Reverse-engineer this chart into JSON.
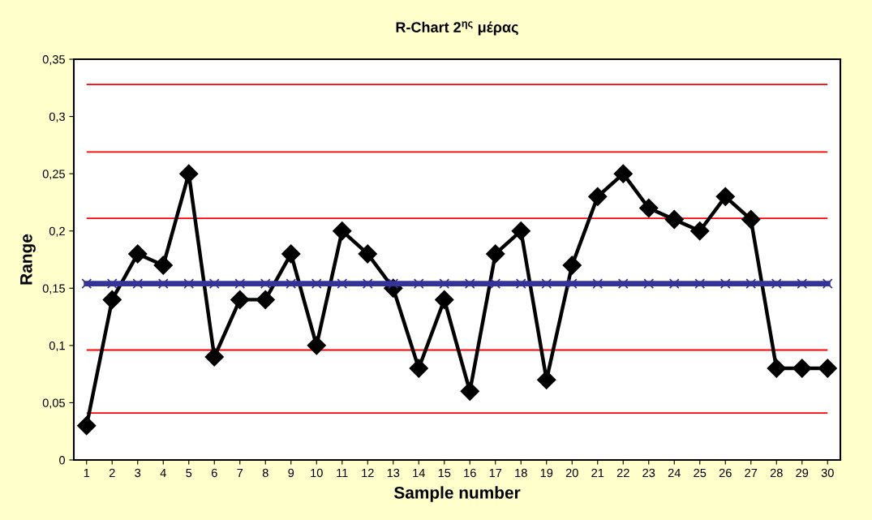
{
  "chart_data": {
    "type": "line",
    "title": "R-Chart 2$^{ης}$ μέρας",
    "xlabel": "Sample number",
    "ylabel": "Range",
    "categories": [
      "1",
      "2",
      "3",
      "4",
      "5",
      "6",
      "7",
      "8",
      "9",
      "10",
      "11",
      "12",
      "13",
      "14",
      "15",
      "16",
      "17",
      "18",
      "19",
      "20",
      "21",
      "22",
      "23",
      "24",
      "25",
      "26",
      "27",
      "28",
      "29",
      "30"
    ],
    "series": [
      {
        "color": "#333399",
        "marker": "cross",
        "values": [
          0.154,
          0.154,
          0.154,
          0.154,
          0.154,
          0.154,
          0.154,
          0.154,
          0.154,
          0.154,
          0.154,
          0.154,
          0.154,
          0.154,
          0.154,
          0.154,
          0.154,
          0.154,
          0.154,
          0.154,
          0.154,
          0.154,
          0.154,
          0.154,
          0.154,
          0.154,
          0.154,
          0.154,
          0.154,
          0.154
        ]
      },
      {
        "color": "#000000",
        "marker": "diamond",
        "values": [
          0.03,
          0.14,
          0.18,
          0.17,
          0.25,
          0.09,
          0.14,
          0.14,
          0.18,
          0.1,
          0.2,
          0.18,
          0.15,
          0.08,
          0.14,
          0.06,
          0.18,
          0.2,
          0.07,
          0.17,
          0.23,
          0.25,
          0.22,
          0.21,
          0.2,
          0.23,
          0.21,
          0.08,
          0.08,
          0.08
        ]
      }
    ],
    "ref_lines": [
      {
        "axis": "y",
        "value": 0.328,
        "color": "#ff0000"
      },
      {
        "axis": "y",
        "value": 0.269,
        "color": "#ff0000"
      },
      {
        "axis": "y",
        "value": 0.211,
        "color": "#ff0000"
      },
      {
        "axis": "y",
        "value": 0.096,
        "color": "#ff0000"
      },
      {
        "axis": "y",
        "value": 0.041,
        "color": "#ff0000"
      }
    ],
    "ylim": [
      0,
      0.35
    ],
    "yticks": [
      {
        "value": 0,
        "label": "0"
      },
      {
        "value": 0.05,
        "label": "0,05"
      },
      {
        "value": 0.1,
        "label": "0,1"
      },
      {
        "value": 0.15,
        "label": "0,15"
      },
      {
        "value": 0.2,
        "label": "0,2"
      },
      {
        "value": 0.25,
        "label": "0,25"
      },
      {
        "value": 0.3,
        "label": "0,3"
      },
      {
        "value": 0.35,
        "label": "0,35"
      }
    ],
    "grid": false,
    "legend": false
  }
}
